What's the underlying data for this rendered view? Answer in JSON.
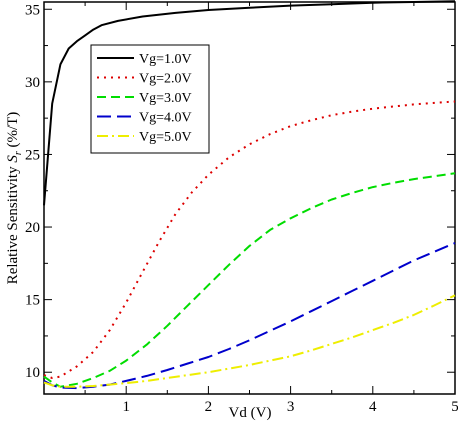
{
  "chart_data": {
    "type": "line",
    "xlabel": "Vd (V)",
    "ylabel_main": "Relative Sensitivity ",
    "ylabel_sym": "S",
    "ylabel_sub": "r",
    "ylabel_unit": " (%/T)",
    "xlim": [
      0.0,
      5.0
    ],
    "ylim": [
      8.5,
      35.5
    ],
    "xticks": [
      1,
      2,
      3,
      4,
      5
    ],
    "yticks": [
      10,
      15,
      20,
      25,
      30,
      35
    ],
    "grid": false,
    "legend_position": "upper-left",
    "series": [
      {
        "name": "Vg=1.0V",
        "color": "#000000",
        "dash": "solid",
        "x": [
          0.0,
          0.05,
          0.1,
          0.2,
          0.3,
          0.4,
          0.5,
          0.6,
          0.7,
          0.9,
          1.2,
          1.6,
          2.0,
          2.5,
          3.0,
          3.5,
          4.0,
          4.5,
          5.0
        ],
        "y": [
          21.5,
          25.0,
          28.5,
          31.2,
          32.3,
          32.8,
          33.2,
          33.6,
          33.9,
          34.2,
          34.5,
          34.75,
          34.95,
          35.1,
          35.25,
          35.35,
          35.45,
          35.5,
          35.55
        ]
      },
      {
        "name": "Vg=2.0V",
        "color": "#dd0000",
        "dash": "dotted",
        "x": [
          0.0,
          0.1,
          0.2,
          0.4,
          0.6,
          0.8,
          1.0,
          1.2,
          1.4,
          1.6,
          1.8,
          2.0,
          2.25,
          2.5,
          2.75,
          3.0,
          3.25,
          3.5,
          3.75,
          4.0,
          4.25,
          4.5,
          4.75,
          5.0
        ],
        "y": [
          9.8,
          9.6,
          9.7,
          10.4,
          11.4,
          12.9,
          14.8,
          16.9,
          19.0,
          20.9,
          22.4,
          23.6,
          24.8,
          25.7,
          26.4,
          26.95,
          27.35,
          27.7,
          27.95,
          28.15,
          28.3,
          28.45,
          28.55,
          28.65
        ]
      },
      {
        "name": "Vg=3.0V",
        "color": "#00dd00",
        "dash": "dashed",
        "x": [
          0.0,
          0.1,
          0.2,
          0.4,
          0.6,
          0.8,
          1.0,
          1.25,
          1.5,
          1.75,
          2.0,
          2.25,
          2.5,
          2.75,
          3.0,
          3.25,
          3.5,
          3.75,
          4.0,
          4.25,
          4.5,
          4.75,
          5.0
        ],
        "y": [
          9.7,
          9.3,
          9.0,
          9.2,
          9.6,
          10.1,
          10.8,
          11.9,
          13.2,
          14.6,
          16.0,
          17.4,
          18.7,
          19.8,
          20.6,
          21.3,
          21.9,
          22.35,
          22.75,
          23.05,
          23.3,
          23.5,
          23.7
        ]
      },
      {
        "name": "Vg=4.0V",
        "color": "#0000cc",
        "dash": "longdash",
        "x": [
          0.0,
          0.1,
          0.2,
          0.4,
          0.6,
          0.8,
          1.0,
          1.25,
          1.5,
          1.75,
          2.0,
          2.25,
          2.5,
          2.75,
          3.0,
          3.25,
          3.5,
          3.75,
          4.0,
          4.25,
          4.5,
          4.75,
          5.0
        ],
        "y": [
          9.4,
          9.1,
          8.95,
          8.9,
          9.0,
          9.15,
          9.4,
          9.75,
          10.15,
          10.6,
          11.05,
          11.6,
          12.2,
          12.85,
          13.5,
          14.2,
          14.9,
          15.6,
          16.3,
          17.0,
          17.7,
          18.3,
          18.9
        ]
      },
      {
        "name": "Vg=5.0V",
        "color": "#eeee00",
        "dash": "dashdot",
        "x": [
          0.0,
          0.1,
          0.2,
          0.4,
          0.6,
          0.8,
          1.0,
          1.25,
          1.5,
          1.75,
          2.0,
          2.25,
          2.5,
          2.75,
          3.0,
          3.25,
          3.5,
          3.75,
          4.0,
          4.25,
          4.5,
          4.75,
          5.0
        ],
        "y": [
          9.3,
          9.1,
          9.0,
          9.0,
          9.05,
          9.15,
          9.25,
          9.4,
          9.6,
          9.8,
          10.0,
          10.25,
          10.5,
          10.8,
          11.1,
          11.5,
          11.95,
          12.4,
          12.9,
          13.4,
          13.95,
          14.6,
          15.3
        ]
      }
    ]
  }
}
